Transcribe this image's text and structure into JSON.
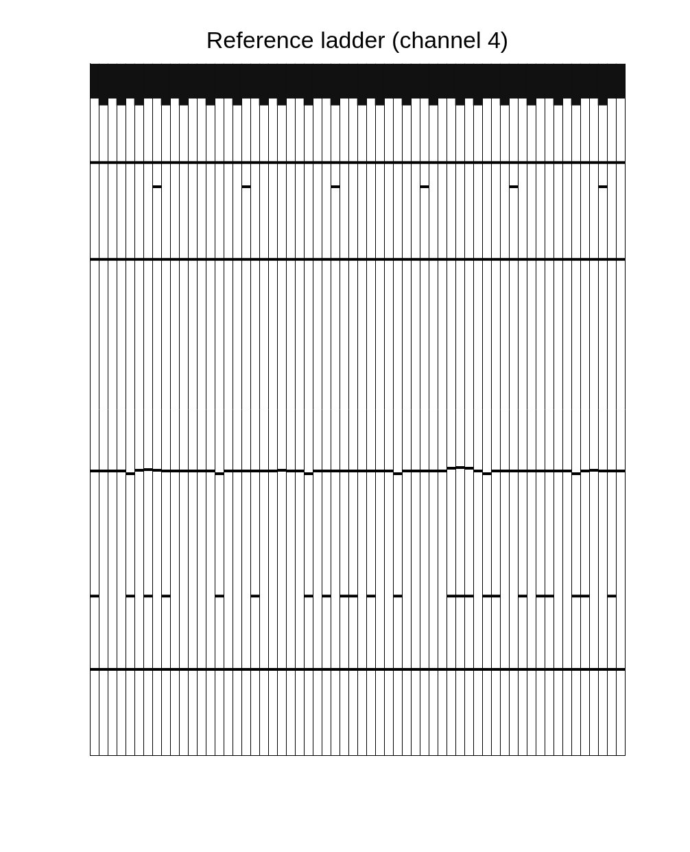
{
  "chart_data": {
    "type": "gel",
    "title": "Reference ladder (channel 4)",
    "categories": [
      null,
      null,
      null,
      null,
      null,
      null,
      null,
      null,
      null,
      null,
      null,
      null,
      null,
      null,
      null,
      null,
      null,
      null,
      null,
      null,
      null,
      null,
      null,
      null,
      null,
      null,
      null,
      null,
      null,
      null,
      null,
      null,
      null,
      null,
      null,
      null,
      null,
      null,
      null,
      null,
      null,
      null,
      null,
      null,
      null,
      null,
      null,
      null,
      null,
      null,
      null,
      null,
      null,
      null,
      null,
      null,
      null,
      null,
      null,
      null
    ],
    "ylim": [
      0,
      100
    ],
    "grid": true,
    "tick_labels": false,
    "series": [
      {
        "type": "area",
        "color": "#111111",
        "values": [
          5,
          6,
          5,
          6,
          5,
          6,
          5,
          5,
          6,
          5,
          6,
          5,
          5,
          6,
          5,
          5,
          6,
          5,
          5,
          6,
          5,
          6,
          5,
          5,
          6,
          5,
          5,
          6,
          5,
          5,
          6,
          5,
          6,
          5,
          5,
          6,
          5,
          5,
          6,
          5,
          5,
          6,
          5,
          6,
          5,
          5,
          6,
          5,
          5,
          6,
          5,
          5,
          6,
          5,
          6,
          5,
          5,
          6,
          5,
          5
        ]
      },
      {
        "type": "band",
        "color": "#000000",
        "values": [
          14.3,
          14.3,
          14.3,
          14.3,
          14.3,
          14.3,
          14.3,
          14.3,
          14.3,
          14.3,
          14.3,
          14.3,
          14.3,
          14.3,
          14.3,
          14.3,
          14.3,
          14.3,
          14.3,
          14.3,
          14.3,
          14.3,
          14.3,
          14.3,
          14.3,
          14.3,
          14.3,
          14.3,
          14.3,
          14.3,
          14.3,
          14.3,
          14.3,
          14.3,
          14.3,
          14.3,
          14.3,
          14.3,
          14.3,
          14.3,
          14.3,
          14.3,
          14.3,
          14.3,
          14.3,
          14.3,
          14.3,
          14.3,
          14.3,
          14.3,
          14.3,
          14.3,
          14.3,
          14.3,
          14.3,
          14.3,
          14.3,
          14.3,
          14.3,
          14.3
        ]
      },
      {
        "type": "band",
        "color": "#000000",
        "values": [
          null,
          null,
          null,
          null,
          null,
          null,
          null,
          17.8,
          null,
          null,
          null,
          null,
          null,
          null,
          null,
          null,
          null,
          17.8,
          null,
          null,
          null,
          null,
          null,
          null,
          null,
          null,
          null,
          17.8,
          null,
          null,
          null,
          null,
          null,
          null,
          null,
          null,
          null,
          17.8,
          null,
          null,
          null,
          null,
          null,
          null,
          null,
          null,
          null,
          17.8,
          null,
          null,
          null,
          null,
          null,
          null,
          null,
          null,
          null,
          17.8,
          null,
          null
        ]
      },
      {
        "type": "band",
        "color": "#000000",
        "values": [
          28.3,
          28.3,
          28.3,
          28.3,
          28.3,
          28.3,
          28.3,
          28.3,
          28.3,
          28.3,
          28.3,
          28.3,
          28.3,
          28.3,
          28.3,
          28.3,
          28.3,
          28.3,
          28.3,
          28.3,
          28.3,
          28.3,
          28.3,
          28.3,
          28.3,
          28.3,
          28.3,
          28.3,
          28.3,
          28.3,
          28.3,
          28.3,
          28.3,
          28.3,
          28.3,
          28.3,
          28.3,
          28.3,
          28.3,
          28.3,
          28.3,
          28.3,
          28.3,
          28.3,
          28.3,
          28.3,
          28.3,
          28.3,
          28.3,
          28.3,
          28.3,
          28.3,
          28.3,
          28.3,
          28.3,
          28.3,
          28.3,
          28.3,
          28.3,
          28.3
        ]
      },
      {
        "type": "band",
        "color": "#000000",
        "values": [
          58.9,
          58.9,
          58.9,
          58.9,
          59.3,
          58.8,
          58.7,
          58.8,
          58.9,
          58.9,
          58.9,
          58.9,
          58.9,
          58.9,
          59.3,
          58.9,
          58.9,
          58.9,
          58.9,
          58.9,
          58.9,
          58.8,
          58.9,
          58.9,
          59.3,
          58.9,
          58.9,
          58.9,
          58.9,
          58.9,
          58.9,
          58.9,
          58.9,
          58.9,
          59.3,
          58.9,
          58.9,
          58.9,
          58.9,
          58.9,
          58.5,
          58.4,
          58.5,
          58.9,
          59.3,
          58.9,
          58.9,
          58.9,
          58.9,
          58.9,
          58.9,
          58.9,
          58.9,
          58.9,
          59.3,
          58.9,
          58.8,
          58.9,
          58.9,
          58.9
        ]
      },
      {
        "type": "band",
        "color": "#000000",
        "values": [
          77.0,
          null,
          null,
          null,
          77.0,
          null,
          77.0,
          null,
          77.0,
          null,
          null,
          null,
          null,
          null,
          77.0,
          null,
          null,
          null,
          77.0,
          null,
          null,
          null,
          null,
          null,
          77.0,
          null,
          77.0,
          null,
          77.0,
          77.0,
          null,
          77.0,
          null,
          null,
          77.0,
          null,
          null,
          null,
          null,
          null,
          77.0,
          77.0,
          77.0,
          null,
          77.0,
          77.0,
          null,
          null,
          77.0,
          null,
          77.0,
          77.0,
          null,
          null,
          77.0,
          77.0,
          null,
          null,
          77.0,
          null
        ]
      },
      {
        "type": "band",
        "color": "#000000",
        "values": [
          87.6,
          87.6,
          87.6,
          87.6,
          87.6,
          87.6,
          87.6,
          87.6,
          87.6,
          87.6,
          87.6,
          87.6,
          87.6,
          87.6,
          87.6,
          87.6,
          87.6,
          87.6,
          87.6,
          87.6,
          87.6,
          87.6,
          87.6,
          87.6,
          87.6,
          87.6,
          87.6,
          87.6,
          87.6,
          87.6,
          87.6,
          87.6,
          87.6,
          87.6,
          87.6,
          87.6,
          87.6,
          87.6,
          87.6,
          87.6,
          87.6,
          87.6,
          87.6,
          87.6,
          87.6,
          87.6,
          87.6,
          87.6,
          87.6,
          87.6,
          87.6,
          87.6,
          87.6,
          87.6,
          87.6,
          87.6,
          87.6,
          87.6,
          87.6,
          87.6
        ]
      }
    ]
  }
}
